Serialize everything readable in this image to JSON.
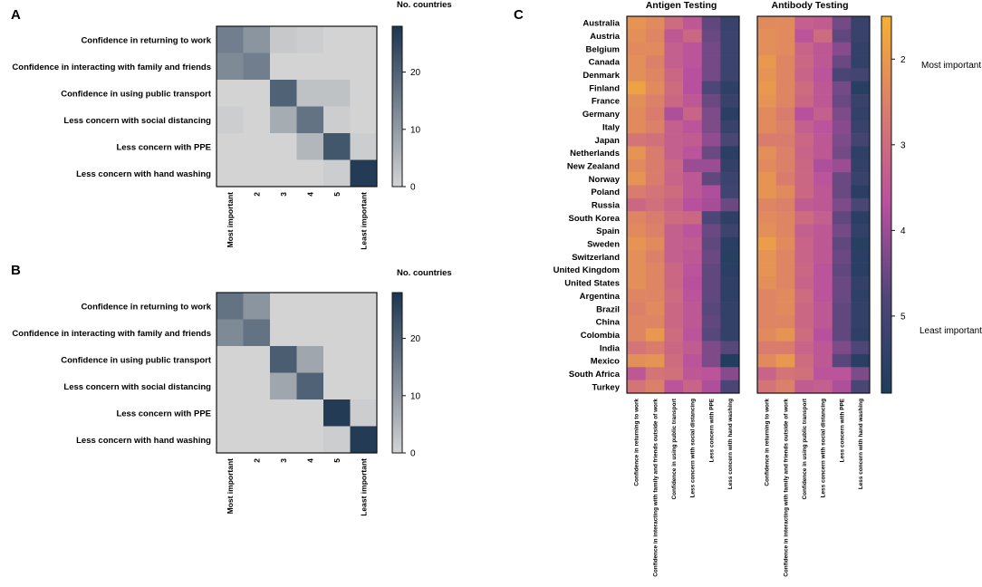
{
  "colors": {
    "gray_low": "#d3d3d3",
    "gray_high": "#1c3550",
    "heat_stops": [
      "#f5b035",
      "#d97c6e",
      "#b8509e",
      "#4d4678",
      "#1e3d5c"
    ],
    "line": "#111111"
  },
  "panels": {
    "a": {
      "label": "A",
      "legend_title": "No. countries",
      "colorbar_ticks": [
        "0",
        "10",
        "20"
      ],
      "x_end_labels": {
        "most": "Most important",
        "least": "Least important"
      }
    },
    "b": {
      "label": "B",
      "legend_title": "No. countries",
      "colorbar_ticks": [
        "0",
        "10",
        "20"
      ],
      "x_end_labels": {
        "most": "Most important",
        "least": "Least important"
      }
    },
    "c": {
      "label": "C",
      "titles": [
        "Antigen Testing",
        "Antibody Testing"
      ],
      "colorbar_ticks": [
        "2",
        "3",
        "4",
        "5"
      ],
      "side_labels": {
        "most": "Most important",
        "least": "Least important"
      }
    }
  },
  "chart_data": [
    {
      "id": "A",
      "type": "heatmap",
      "title": "",
      "legend_title": "No. countries",
      "rows": [
        "Confidence in returning to work",
        "Confidence in interacting with family and friends",
        "Confidence in using public transport",
        "Less concern with social distancing",
        "Less concern with PPE",
        "Less concern with hand washing"
      ],
      "columns": [
        "Most important",
        "2",
        "3",
        "4",
        "5",
        "Least important"
      ],
      "values": [
        [
          15,
          11,
          2,
          1,
          0,
          0
        ],
        [
          13,
          15,
          0,
          0,
          0,
          0
        ],
        [
          0,
          0,
          20,
          3,
          3,
          0
        ],
        [
          1,
          0,
          7,
          17,
          1,
          0
        ],
        [
          0,
          0,
          0,
          5,
          22,
          1
        ],
        [
          0,
          0,
          0,
          0,
          1,
          27
        ]
      ],
      "colorbar_range": [
        0,
        28
      ],
      "colorbar_ticks": [
        0,
        10,
        20
      ]
    },
    {
      "id": "B",
      "type": "heatmap",
      "title": "",
      "legend_title": "No. countries",
      "rows": [
        "Confidence in returning to work",
        "Confidence in interacting with family and friends",
        "Confidence in using public transport",
        "Less concern with social distancing",
        "Less concern with PPE",
        "Less concern with hand washing"
      ],
      "columns": [
        "Most important",
        "2",
        "3",
        "4",
        "5",
        "Least important"
      ],
      "values": [
        [
          17,
          11,
          0,
          0,
          0,
          0
        ],
        [
          13,
          17,
          0,
          0,
          0,
          0
        ],
        [
          0,
          0,
          21,
          8,
          0,
          0
        ],
        [
          0,
          0,
          8,
          20,
          0,
          0
        ],
        [
          0,
          0,
          0,
          0,
          27,
          1
        ],
        [
          0,
          0,
          0,
          0,
          1,
          27
        ]
      ],
      "colorbar_range": [
        0,
        28
      ],
      "colorbar_ticks": [
        0,
        10,
        20
      ]
    },
    {
      "id": "C-antigen",
      "type": "heatmap",
      "title": "Antigen Testing",
      "rows": [
        "Australia",
        "Austria",
        "Belgium",
        "Canada",
        "Denmark",
        "Finland",
        "France",
        "Germany",
        "Italy",
        "Japan",
        "Netherlands",
        "New Zealand",
        "Norway",
        "Poland",
        "Russia",
        "South Korea",
        "Spain",
        "Sweden",
        "Switzerland",
        "United Kingdom",
        "United States",
        "Argentina",
        "Brazil",
        "China",
        "Colombia",
        "India",
        "Mexico",
        "South Africa",
        "Turkey"
      ],
      "columns": [
        "Confidence in returning to work",
        "Confidence in interacting with family and friends outside of work",
        "Confidence in using public transport",
        "Less concern with social distancing",
        "Less concern with PPE",
        "Less concern with hand washing"
      ],
      "values": [
        [
          2.1,
          2.3,
          3.0,
          3.5,
          4.6,
          5.3
        ],
        [
          2.2,
          2.4,
          3.5,
          3.1,
          4.5,
          5.2
        ],
        [
          2.3,
          2.3,
          3.3,
          3.6,
          4.4,
          5.2
        ],
        [
          2.2,
          2.5,
          3.3,
          3.6,
          4.4,
          5.2
        ],
        [
          2.2,
          2.4,
          3.1,
          3.7,
          4.4,
          5.2
        ],
        [
          1.8,
          2.3,
          3.0,
          3.7,
          4.8,
          5.5
        ],
        [
          2.2,
          2.5,
          3.1,
          3.5,
          4.5,
          5.3
        ],
        [
          2.3,
          2.6,
          3.8,
          3.2,
          4.3,
          5.6
        ],
        [
          2.3,
          2.5,
          3.3,
          3.6,
          4.3,
          5.3
        ],
        [
          2.8,
          2.9,
          3.3,
          3.4,
          4.1,
          4.9
        ],
        [
          2.1,
          2.6,
          3.3,
          3.6,
          4.5,
          5.6
        ],
        [
          2.3,
          2.6,
          3.1,
          4.0,
          4.0,
          5.4
        ],
        [
          2.1,
          2.6,
          3.2,
          3.5,
          4.6,
          5.2
        ],
        [
          2.6,
          2.8,
          3.0,
          3.5,
          3.8,
          5.1
        ],
        [
          3.1,
          2.9,
          3.2,
          3.7,
          3.9,
          4.5
        ],
        [
          2.4,
          2.6,
          3.0,
          3.1,
          4.8,
          5.5
        ],
        [
          2.3,
          2.5,
          3.3,
          3.6,
          4.5,
          5.2
        ],
        [
          2.1,
          2.3,
          3.3,
          3.4,
          4.6,
          5.6
        ],
        [
          2.2,
          2.5,
          3.3,
          3.5,
          4.5,
          5.7
        ],
        [
          2.2,
          2.4,
          3.1,
          3.6,
          4.6,
          5.6
        ],
        [
          2.2,
          2.4,
          3.1,
          3.7,
          4.6,
          5.5
        ],
        [
          2.4,
          2.4,
          3.0,
          3.6,
          4.6,
          5.5
        ],
        [
          2.5,
          2.3,
          3.1,
          3.5,
          4.7,
          5.4
        ],
        [
          2.4,
          2.4,
          3.1,
          3.5,
          4.6,
          5.4
        ],
        [
          2.4,
          2.0,
          3.0,
          3.6,
          4.7,
          5.4
        ],
        [
          2.8,
          2.6,
          3.1,
          3.4,
          4.3,
          4.7
        ],
        [
          2.2,
          2.1,
          3.0,
          3.6,
          4.3,
          5.8
        ],
        [
          3.5,
          2.8,
          2.9,
          3.5,
          3.6,
          4.2
        ],
        [
          2.8,
          2.5,
          3.6,
          3.2,
          3.8,
          4.9
        ]
      ],
      "colorbar_range": [
        1.5,
        5.9
      ]
    },
    {
      "id": "C-antibody",
      "type": "heatmap",
      "title": "Antibody Testing",
      "rows": [
        "Australia",
        "Austria",
        "Belgium",
        "Canada",
        "Denmark",
        "Finland",
        "France",
        "Germany",
        "Italy",
        "Japan",
        "Netherlands",
        "New Zealand",
        "Norway",
        "Poland",
        "Russia",
        "South Korea",
        "Spain",
        "Sweden",
        "Switzerland",
        "United Kingdom",
        "United States",
        "Argentina",
        "Brazil",
        "China",
        "Colombia",
        "India",
        "Mexico",
        "South Africa",
        "Turkey"
      ],
      "columns": [
        "Confidence in returning to work",
        "Confidence in interacting with family and friends outside of work",
        "Confidence in using public transport",
        "Less concern with social distancing",
        "Less concern with PPE",
        "Less concern with hand washing"
      ],
      "values": [
        [
          2.3,
          2.3,
          3.3,
          3.4,
          4.4,
          5.3
        ],
        [
          2.2,
          2.3,
          3.6,
          3.0,
          4.6,
          5.3
        ],
        [
          2.2,
          2.3,
          3.2,
          3.5,
          4.2,
          5.4
        ],
        [
          2.0,
          2.4,
          3.1,
          3.5,
          4.5,
          5.4
        ],
        [
          2.1,
          2.4,
          3.2,
          3.6,
          4.9,
          5.0
        ],
        [
          2.0,
          2.4,
          3.0,
          3.5,
          4.4,
          5.7
        ],
        [
          2.1,
          2.4,
          3.1,
          3.5,
          4.5,
          5.3
        ],
        [
          2.3,
          2.6,
          3.7,
          3.3,
          4.3,
          5.4
        ],
        [
          2.3,
          2.5,
          3.3,
          3.6,
          4.2,
          5.3
        ],
        [
          2.6,
          2.6,
          3.1,
          3.5,
          4.3,
          5.0
        ],
        [
          2.2,
          2.5,
          3.2,
          3.5,
          4.4,
          5.5
        ],
        [
          2.3,
          2.5,
          3.1,
          3.8,
          4.0,
          5.4
        ],
        [
          2.1,
          2.6,
          3.1,
          3.6,
          4.5,
          5.3
        ],
        [
          2.1,
          2.3,
          3.1,
          3.5,
          4.5,
          5.6
        ],
        [
          2.4,
          2.5,
          3.4,
          3.5,
          4.3,
          4.9
        ],
        [
          2.3,
          2.4,
          3.0,
          3.3,
          4.6,
          5.6
        ],
        [
          2.2,
          2.4,
          3.3,
          3.5,
          4.4,
          5.4
        ],
        [
          1.9,
          2.3,
          3.2,
          3.5,
          4.6,
          5.7
        ],
        [
          2.1,
          2.4,
          3.2,
          3.5,
          4.5,
          5.6
        ],
        [
          2.1,
          2.4,
          3.1,
          3.6,
          4.6,
          5.6
        ],
        [
          2.2,
          2.4,
          3.2,
          3.6,
          4.5,
          5.4
        ],
        [
          2.4,
          2.3,
          3.0,
          3.6,
          4.5,
          5.5
        ],
        [
          2.4,
          2.3,
          3.1,
          3.5,
          4.6,
          5.4
        ],
        [
          2.4,
          2.4,
          3.1,
          3.5,
          4.6,
          5.4
        ],
        [
          2.3,
          2.1,
          3.0,
          3.7,
          4.6,
          5.5
        ],
        [
          2.6,
          2.6,
          3.2,
          3.5,
          4.3,
          4.8
        ],
        [
          2.3,
          2.0,
          3.0,
          3.5,
          4.7,
          5.6
        ],
        [
          3.2,
          2.8,
          2.9,
          3.6,
          3.6,
          4.3
        ],
        [
          2.8,
          2.5,
          3.4,
          3.3,
          3.8,
          4.9
        ]
      ],
      "colorbar_range": [
        1.5,
        5.9
      ],
      "colorbar_ticks": [
        2,
        3,
        4,
        5
      ]
    }
  ]
}
